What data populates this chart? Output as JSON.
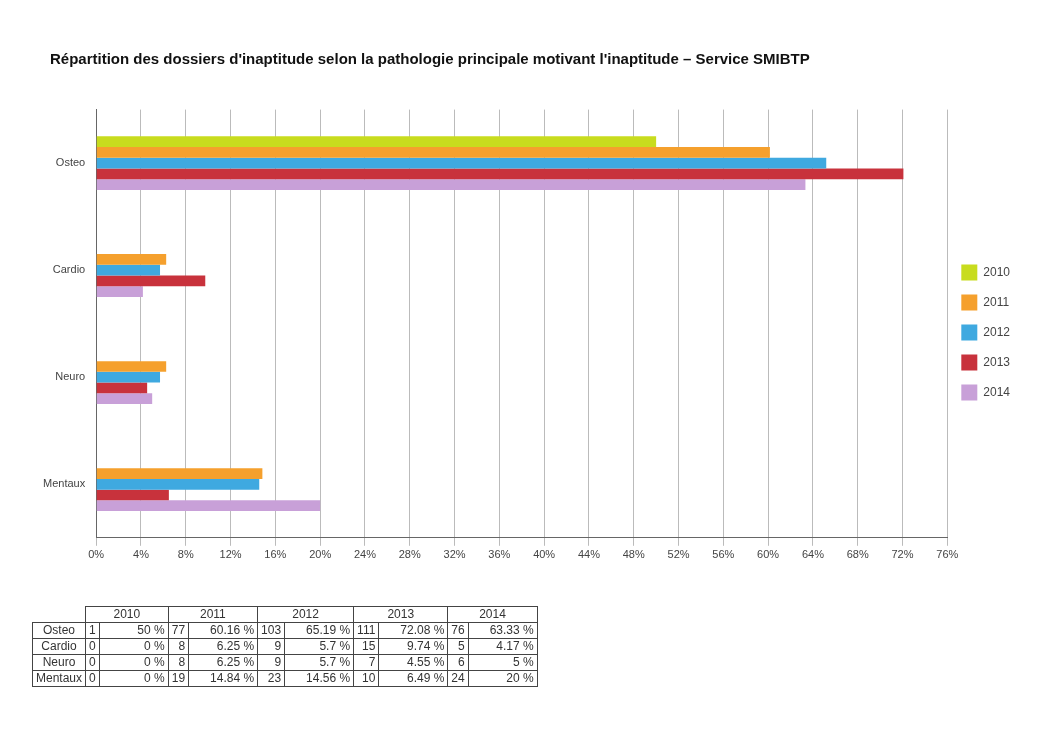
{
  "chart_data": [
    {
      "type": "bar",
      "orientation": "horizontal",
      "title": "Répartition des dossiers d'inaptitude selon la pathologie principale motivant l'inaptitude – Service SMIBTP",
      "categories": [
        "Osteo",
        "Cardio",
        "Neuro",
        "Mentaux"
      ],
      "series": [
        {
          "name": "2010",
          "color": "#c8dc1e",
          "values": [
            50,
            0,
            0,
            0
          ],
          "value_labels": [
            "50 %",
            "0 %",
            "0 %",
            "0 %"
          ]
        },
        {
          "name": "2011",
          "color": "#f5a02d",
          "values": [
            60.16,
            6.25,
            6.25,
            14.84
          ],
          "value_labels": [
            "60.16 %",
            "6.25 %",
            "6.25 %",
            "14.84 %"
          ]
        },
        {
          "name": "2012",
          "color": "#3fa9e0",
          "values": [
            65.19,
            5.7,
            5.7,
            14.56
          ],
          "value_labels": [
            "65.19 %",
            "5.7 %",
            "5.7 %",
            "14.56 %"
          ]
        },
        {
          "name": "2013",
          "color": "#c8323c",
          "values": [
            72.08,
            9.74,
            4.55,
            6.49
          ],
          "value_labels": [
            "72.08 %",
            "9.74 %",
            "4.55 %",
            "6.49 %"
          ]
        },
        {
          "name": "2014",
          "color": "#c8a0d8",
          "values": [
            63.33,
            4.17,
            5,
            20
          ],
          "value_labels": [
            "63.33 %",
            "4.17 %",
            "5 %",
            "20 %"
          ]
        }
      ],
      "xlim": [
        0,
        76
      ],
      "xticks": [
        {
          "value": 0,
          "label": "0%"
        },
        {
          "value": 4,
          "label": "4%"
        },
        {
          "value": 8,
          "label": "8%"
        },
        {
          "value": 12,
          "label": "12%"
        },
        {
          "value": 16,
          "label": "16%"
        },
        {
          "value": 20,
          "label": "20%"
        },
        {
          "value": 24,
          "label": "24%"
        },
        {
          "value": 28,
          "label": "28%"
        },
        {
          "value": 32,
          "label": "32%"
        },
        {
          "value": 36,
          "label": "36%"
        },
        {
          "value": 40,
          "label": "40%"
        },
        {
          "value": 44,
          "label": "44%"
        },
        {
          "value": 48,
          "label": "48%"
        },
        {
          "value": 52,
          "label": "52%"
        },
        {
          "value": 56,
          "label": "56%"
        },
        {
          "value": 60,
          "label": "60%"
        },
        {
          "value": 64,
          "label": "64%"
        },
        {
          "value": 68,
          "label": "68%"
        },
        {
          "value": 72,
          "label": "72%"
        },
        {
          "value": 76,
          "label": "76%"
        }
      ],
      "grid": "x",
      "legend": "right"
    },
    {
      "type": "heatmap",
      "categories": [
        "2010",
        "2011",
        "2012",
        "2013",
        "2014"
      ],
      "y_categories": [
        "Osteo",
        "Cardio",
        "Neuro",
        "Mentaux"
      ],
      "cells": [
        [
          1,
          77,
          103,
          111,
          76
        ],
        [
          0,
          8,
          9,
          15,
          5
        ],
        [
          0,
          8,
          9,
          7,
          6
        ],
        [
          0,
          19,
          23,
          10,
          24
        ]
      ],
      "data_labels": true
    }
  ]
}
